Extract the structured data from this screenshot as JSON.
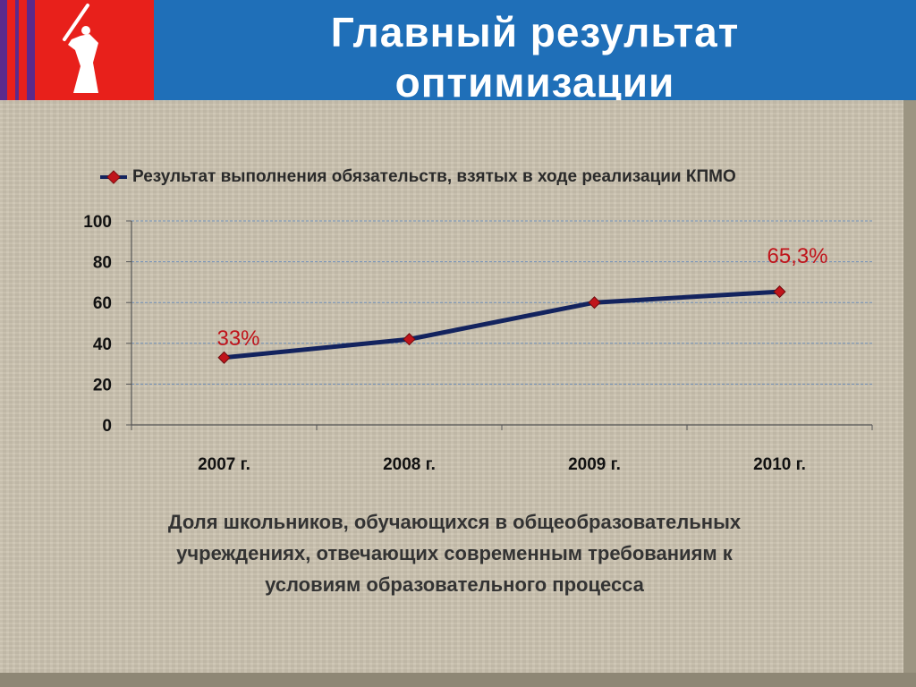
{
  "header": {
    "title_line1": "Главный результат",
    "title_line2": "оптимизации",
    "logo_icon": "monument-logo-icon",
    "colors": {
      "title_bar": "#1f6fb8",
      "logo_bg": "#e8201b",
      "stripe": "#5b2a8c"
    }
  },
  "chart_data": {
    "type": "line",
    "categories": [
      "2007 г.",
      "2008 г.",
      "2009 г.",
      "2010 г."
    ],
    "series": [
      {
        "name": "Результат выполнения обязательств, взятых в ходе реализации КПМО",
        "values": [
          33,
          42,
          60,
          65.3
        ],
        "color": "#13235e",
        "marker_color": "#c0141b"
      }
    ],
    "data_labels": [
      {
        "index": 0,
        "text": "33%"
      },
      {
        "index": 3,
        "text": "65,3%"
      }
    ],
    "y_ticks": [
      "0",
      "20",
      "40",
      "60",
      "80",
      "100"
    ],
    "ylim": [
      0,
      100
    ],
    "grid": true,
    "legend_position": "top"
  },
  "caption": {
    "line1": "Доля школьников, обучающихся в общеобразовательных",
    "line2": "учреждениях, отвечающих   современным требованиям к",
    "line3": "условиям образовательного процесса"
  }
}
